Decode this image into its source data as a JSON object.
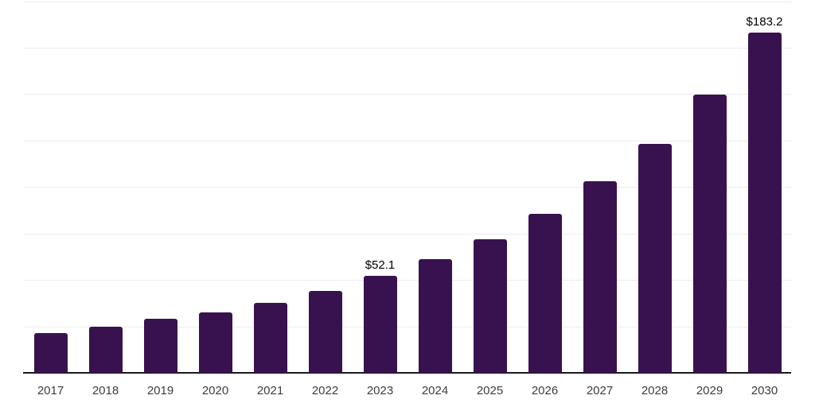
{
  "chart_data": {
    "type": "bar",
    "title": "",
    "categories": [
      "2017",
      "2018",
      "2019",
      "2020",
      "2021",
      "2022",
      "2023",
      "2024",
      "2025",
      "2026",
      "2027",
      "2028",
      "2029",
      "2030"
    ],
    "values": [
      21.5,
      24.7,
      29.3,
      32.5,
      37.5,
      43.9,
      52.1,
      61.1,
      71.7,
      85.6,
      103.1,
      123.3,
      149.9,
      183.2
    ],
    "annotations": [
      {
        "category": "2023",
        "text": "$52.1"
      },
      {
        "category": "2030",
        "text": "$183.2"
      }
    ],
    "xlabel": "",
    "ylabel": "",
    "ylim": [
      0,
      200
    ],
    "gridline_step": 25,
    "grid": "horizontal-only",
    "y_axis_labels_visible": false,
    "legend": "none"
  },
  "style": {
    "bar_color": "#38124E",
    "gridline_color": "#EDEDED",
    "axis_color": "#1A1A1A",
    "tick_label_color": "#3D3D3D",
    "annotation_color": "#000000",
    "background_color": "#FFFFFF"
  }
}
